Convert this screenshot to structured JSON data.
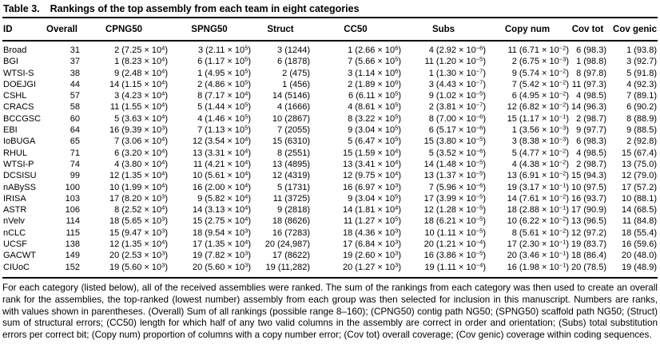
{
  "table": {
    "label": "Table 3.",
    "title": "Rankings of the top assembly from each team in eight categories",
    "columns": [
      "ID",
      "Overall",
      "CPNG50",
      "SPNG50",
      "Struct",
      "CC50",
      "Subs",
      "Copy num",
      "Cov tot",
      "Cov genic"
    ],
    "rows": [
      [
        "Broad",
        "31",
        "2 (7.25 × 10^4)",
        "3 (2.11 × 10^5)",
        "3 (1244)",
        "1 (2.66 × 10^6)",
        "4 (2.92 × 10^-6)",
        "11 (6.71 × 10^-2)",
        "6 (98.3)",
        "1 (93.8)"
      ],
      [
        "BGI",
        "37",
        "1 (8.23 × 10^4)",
        "6 (1.17 × 10^5)",
        "6 (1878)",
        "7 (5.66 × 10^5)",
        "11 (1.20 × 10^-5)",
        "2 (6.75 × 10^-3)",
        "1 (98.8)",
        "3 (92.7)"
      ],
      [
        "WTSI-S",
        "38",
        "9 (2.48 × 10^4)",
        "1 (4.95 × 10^5)",
        "2 (475)",
        "3 (1.14 × 10^6)",
        "1 (1.30 × 10^-7)",
        "9 (5.74 × 10^-2)",
        "8 (97.8)",
        "5 (91.8)"
      ],
      [
        "DOEJGI",
        "44",
        "14 (1.15 × 10^4)",
        "2 (4.86 × 10^5)",
        "1 (456)",
        "2 (1.89 × 10^6)",
        "3 (4.43 × 10^-7)",
        "7 (5.42 × 10^-2)",
        "11 (97.3)",
        "4 (92.3)"
      ],
      [
        "CSHL",
        "57",
        "3 (4.23 × 10^4)",
        "8 (7.17 × 10^4)",
        "14 (5146)",
        "6 (6.11 × 10^5)",
        "9 (1.02 × 10^-5)",
        "6 (4.95 × 10^-2)",
        "4 (98.5)",
        "7 (89.1)"
      ],
      [
        "CRACS",
        "58",
        "11 (1.55 × 10^4)",
        "5 (1.44 × 10^5)",
        "4 (1666)",
        "4 (8.61 × 10^5)",
        "2 (3.81 × 10^-7)",
        "12 (6.82 × 10^-2)",
        "14 (96.3)",
        "6 (90.2)"
      ],
      [
        "BCCGSC",
        "60",
        "5 (3.63 × 10^4)",
        "4 (1.46 × 10^5)",
        "10 (2867)",
        "8 (3.22 × 10^5)",
        "8 (7.00 × 10^-6)",
        "15 (1.17 × 10^-1)",
        "2 (98.7)",
        "8 (88.9)"
      ],
      [
        "EBI",
        "64",
        "16 (9.39 × 10^3)",
        "7 (1.13 × 10^5)",
        "7 (2055)",
        "9 (3.04 × 10^5)",
        "6 (5.17 × 10^-6)",
        "1 (3.56 × 10^-3)",
        "9 (97.7)",
        "9 (88.5)"
      ],
      [
        "IoBUGA",
        "65",
        "7 (3.06 × 10^4)",
        "12 (3.54 × 10^4)",
        "15 (6310)",
        "5 (6.47 × 10^5)",
        "15 (3.80 × 10^-5)",
        "3 (8.38 × 10^-3)",
        "6 (98.3)",
        "2 (92.8)"
      ],
      [
        "RHUL",
        "71",
        "6 (3.20 × 10^4)",
        "13 (3.31 × 10^4)",
        "8 (2551)",
        "15 (1.59 × 10^4)",
        "5 (3.52 × 10^-6)",
        "5 (4.77 × 10^-2)",
        "4 (98.5)",
        "15 (67.4)"
      ],
      [
        "WTSI-P",
        "74",
        "4 (3.80 × 10^4)",
        "11 (4.21 × 10^4)",
        "13 (4895)",
        "13 (3.41 × 10^4)",
        "14 (1.48 × 10^-5)",
        "4 (4.38 × 10^-2)",
        "2 (98.7)",
        "13 (75.0)"
      ],
      [
        "DCSISU",
        "99",
        "12 (1.35 × 10^4)",
        "10 (5.61 × 10^4)",
        "12 (4319)",
        "12 (9.75 × 10^4)",
        "13 (1.37 × 10^-5)",
        "13 (6.91 × 10^-2)",
        "15 (94.3)",
        "12 (79.0)"
      ],
      [
        "nABySS",
        "100",
        "10 (1.99 × 10^4)",
        "16 (2.00 × 10^4)",
        "5 (1731)",
        "16 (6.97 × 10^3)",
        "7 (5.96 × 10^-6)",
        "19 (3.17 × 10^-1)",
        "10 (97.5)",
        "17 (57.2)"
      ],
      [
        "IRISA",
        "103",
        "17 (8.20 × 10^3)",
        "9 (5.82 × 10^4)",
        "11 (3725)",
        "9 (3.04 × 10^5)",
        "17 (3.99 × 10^-5)",
        "14 (7.61 × 10^-2)",
        "16 (93.7)",
        "10 (88.1)"
      ],
      [
        "ASTR",
        "106",
        "8 (2.52 × 10^4)",
        "14 (3.13 × 10^4)",
        "9 (2818)",
        "14 (1.81 × 10^4)",
        "12 (1.28 × 10^-5)",
        "18 (2.88 × 10^-1)",
        "17 (90.9)",
        "14 (68.5)"
      ],
      [
        "nVelv",
        "114",
        "18 (5.65 × 10^3)",
        "15 (2.75 × 10^4)",
        "18 (8626)",
        "11 (1.27 × 10^5)",
        "18 (6.21 × 10^-5)",
        "10 (6.22 × 10^-2)",
        "13 (96.5)",
        "11 (84.8)"
      ],
      [
        "nCLC",
        "115",
        "15 (9.47 × 10^3)",
        "18 (9.54 × 10^3)",
        "16 (7283)",
        "18 (4.36 × 10^3)",
        "10 (1.11 × 10^-5)",
        "8 (5.61 × 10^-2)",
        "12 (97.2)",
        "18 (55.4)"
      ],
      [
        "UCSF",
        "138",
        "12 (1.35 × 10^4)",
        "17 (1.35 × 10^4)",
        "20 (24,987)",
        "17 (6.84 × 10^3)",
        "20 (1.21 × 10^-4)",
        "17 (2.30 × 10^-1)",
        "19 (83.7)",
        "16 (59.6)"
      ],
      [
        "GACWT",
        "149",
        "20 (2.53 × 10^3)",
        "19 (7.82 × 10^3)",
        "17 (8622)",
        "19 (2.60 × 10^3)",
        "16 (3.86 × 10^-5)",
        "20 (3.46 × 10^-1)",
        "18 (86.4)",
        "20 (48.0)"
      ],
      [
        "CIUoC",
        "152",
        "19 (5.60 × 10^3)",
        "20 (5.60 × 10^3)",
        "19 (11,282)",
        "20 (1.27 × 10^3)",
        "19 (1.11 × 10^-4)",
        "16 (1.98 × 10^-1)",
        "20 (78.5)",
        "19 (48.9)"
      ]
    ],
    "footnote": "For each category (listed below), all of the received assemblies were ranked. The sum of the rankings from each category was then used to create an overall rank for the assemblies, the top-ranked (lowest number) assembly from each group was then selected for inclusion in this manuscript. Numbers are ranks, with values shown in parentheses. (Overall) Sum of all rankings (possible range 8–160); (CPNG50) contig path NG50; (SPNG50) scaffold path NG50; (Struct) sum of structural errors; (CC50) length for which half of any two valid columns in the assembly are correct in order and orientation; (Subs) total substitution errors per correct bit; (Copy num) proportion of columns with a copy number error; (Cov tot) overall coverage; (Cov genic) coverage within coding sequences."
  }
}
